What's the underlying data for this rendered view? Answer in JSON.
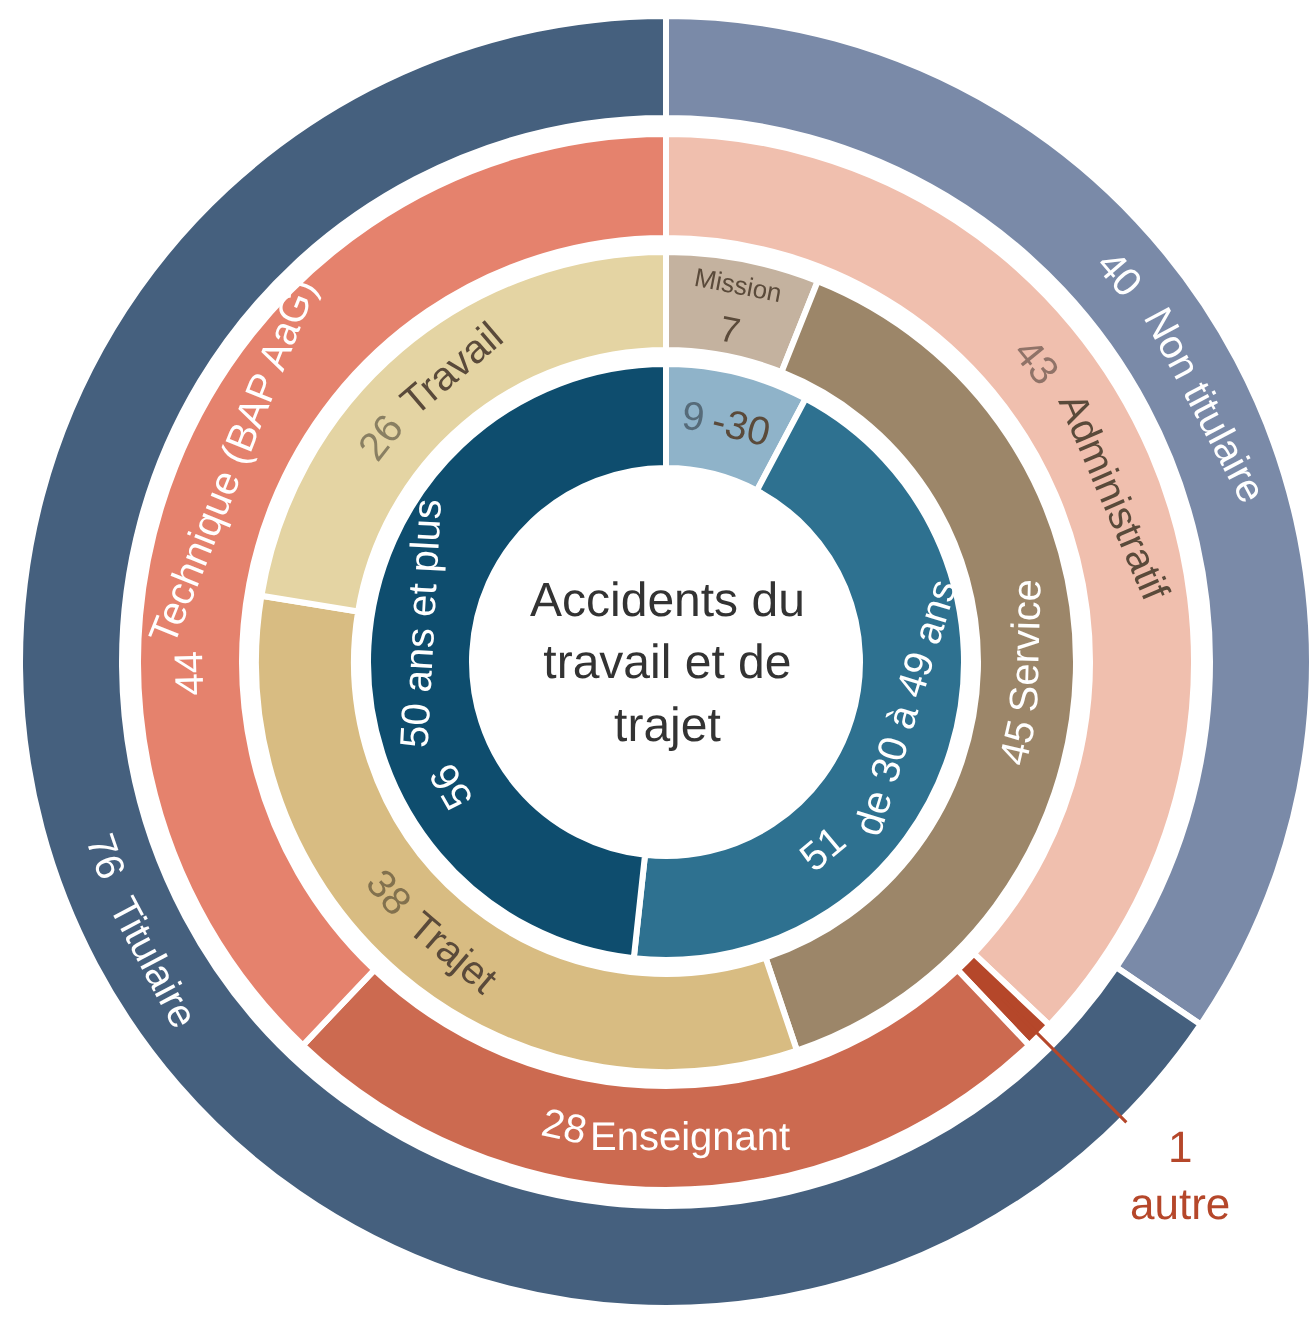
{
  "chart_data": [
    {
      "type": "donut",
      "title": "Accidents du travail et de trajet",
      "categories": [
        "Non titulaire",
        "Titulaire"
      ],
      "values": [
        40,
        76
      ],
      "colors": [
        "#7a8aa8",
        "#45607e"
      ],
      "data_labels": true
    },
    {
      "type": "donut",
      "categories": [
        "Administratif",
        "autre",
        "Enseignant",
        "Technique (BAP AaG)"
      ],
      "values": [
        43,
        1,
        28,
        44
      ],
      "colors": [
        "#f0bfae",
        "#b5472a",
        "#cc6a50",
        "#e5826d"
      ],
      "data_labels": true
    },
    {
      "type": "donut",
      "categories": [
        "Mission",
        "Service",
        "Trajet",
        "Travail"
      ],
      "values": [
        7,
        45,
        38,
        26
      ],
      "colors": [
        "#c4b29f",
        "#9c8669",
        "#d8bc82",
        "#e4d4a3"
      ],
      "data_labels": true
    },
    {
      "type": "donut",
      "categories": [
        "-30",
        "de 30 à 49 ans",
        "50 ans et plus"
      ],
      "values": [
        9,
        51,
        56
      ],
      "colors": [
        "#8fb3c9",
        "#2e7190",
        "#0e4d6e"
      ],
      "data_labels": true
    }
  ]
}
